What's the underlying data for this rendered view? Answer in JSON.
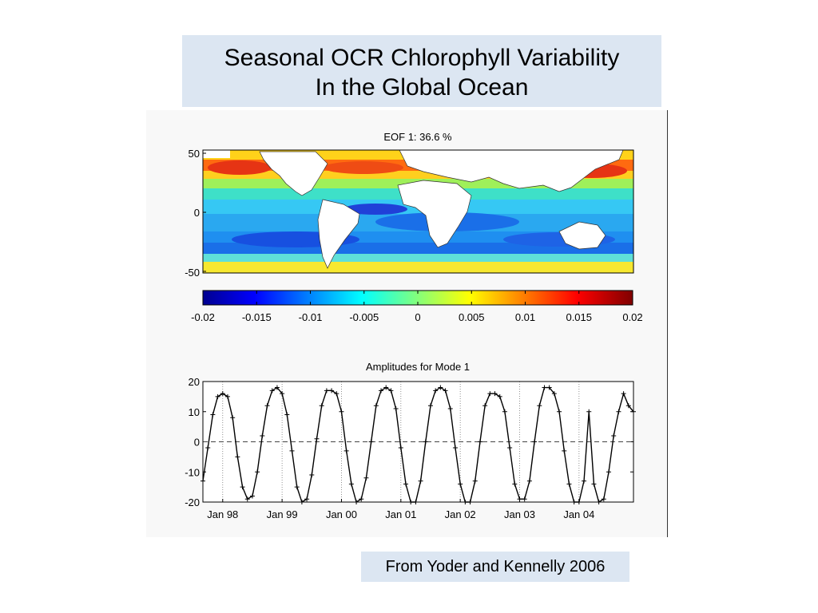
{
  "slide": {
    "title_line1": "Seasonal OCR Chlorophyll Variability",
    "title_line2": "In the Global Ocean",
    "source": "From Yoder and Kennelly 2006"
  },
  "chart_data": [
    {
      "type": "heatmap",
      "title": "EOF 1:  36.6 %",
      "subtitle": "",
      "xlabel": "",
      "ylabel": "",
      "y_ticks": [
        "50",
        "0",
        "-50"
      ],
      "colorbar": {
        "range": [
          -0.02,
          0.02
        ],
        "ticks": [
          "-0.02",
          "-0.015",
          "-0.01",
          "-0.005",
          "0",
          "0.005",
          "0.01",
          "0.015",
          "0.02"
        ],
        "colormap": "jet",
        "colors": [
          "#00008f",
          "#0000ff",
          "#00ffff",
          "#ffff00",
          "#ff0000",
          "#800000"
        ]
      },
      "land_color": "#ffffff"
    },
    {
      "type": "line",
      "title": "Amplitudes for Mode 1",
      "xlabel": "",
      "ylabel": "",
      "x_tick_labels": [
        "Jan 98",
        "Jan 99",
        "Jan 00",
        "Jan 01",
        "Jan 02",
        "Jan 03",
        "Jan 04"
      ],
      "x_tick_dates": [
        "1998-01",
        "1999-01",
        "2000-01",
        "2001-01",
        "2002-01",
        "2003-01",
        "2004-01"
      ],
      "xlim": [
        "1997-09",
        "2004-12"
      ],
      "ylim": [
        -20,
        20
      ],
      "y_ticks": [
        "20",
        "10",
        "0",
        "-10",
        "-20"
      ],
      "grid": "vertical dotted lines at ticks",
      "zero_line": "dashed",
      "series": [
        {
          "marker": "+",
          "color": "#000000",
          "x": [
            "1997-09",
            "1997-10",
            "1997-11",
            "1997-12",
            "1998-01",
            "1998-02",
            "1998-03",
            "1998-04",
            "1998-05",
            "1998-06",
            "1998-07",
            "1998-08",
            "1998-09",
            "1998-10",
            "1998-11",
            "1998-12",
            "1999-01",
            "1999-02",
            "1999-03",
            "1999-04",
            "1999-05",
            "1999-06",
            "1999-07",
            "1999-08",
            "1999-09",
            "1999-10",
            "1999-11",
            "1999-12",
            "2000-01",
            "2000-02",
            "2000-03",
            "2000-04",
            "2000-05",
            "2000-06",
            "2000-07",
            "2000-08",
            "2000-09",
            "2000-10",
            "2000-11",
            "2000-12",
            "2001-01",
            "2001-02",
            "2001-03",
            "2001-04",
            "2001-05",
            "2001-06",
            "2001-07",
            "2001-08",
            "2001-09",
            "2001-10",
            "2001-11",
            "2001-12",
            "2002-01",
            "2002-02",
            "2002-03",
            "2002-04",
            "2002-05",
            "2002-06",
            "2002-07",
            "2002-08",
            "2002-09",
            "2002-10",
            "2002-11",
            "2002-12",
            "2003-01",
            "2003-02",
            "2003-03",
            "2003-04",
            "2003-05",
            "2003-06",
            "2003-07",
            "2003-08",
            "2003-09",
            "2003-10",
            "2003-11",
            "2003-12",
            "2004-01",
            "2004-02",
            "2004-03",
            "2004-04",
            "2004-05",
            "2004-06",
            "2004-07",
            "2004-08",
            "2004-09",
            "2004-10",
            "2004-11",
            "2004-12"
          ],
          "values": [
            -13,
            -2,
            9,
            15,
            16,
            15,
            8,
            -5,
            -15,
            -19,
            -18,
            -10,
            2,
            12,
            17,
            18,
            16,
            9,
            -3,
            -15,
            -20,
            -19,
            -11,
            1,
            12,
            17,
            17,
            16,
            10,
            -3,
            -14,
            -20,
            -19,
            -12,
            0,
            12,
            17,
            18,
            17,
            11,
            -2,
            -14,
            -20,
            -20,
            -13,
            0,
            12,
            17,
            18,
            17,
            11,
            -2,
            -14,
            -20,
            -20,
            -13,
            0,
            12,
            16,
            16,
            15,
            10,
            -2,
            -14,
            -19,
            -19,
            -13,
            0,
            12,
            18,
            18,
            16,
            10,
            -3,
            -14,
            -20,
            -20,
            -13,
            10,
            -14,
            -20,
            -19,
            -10,
            2,
            10,
            16,
            12,
            10
          ]
        }
      ]
    }
  ]
}
